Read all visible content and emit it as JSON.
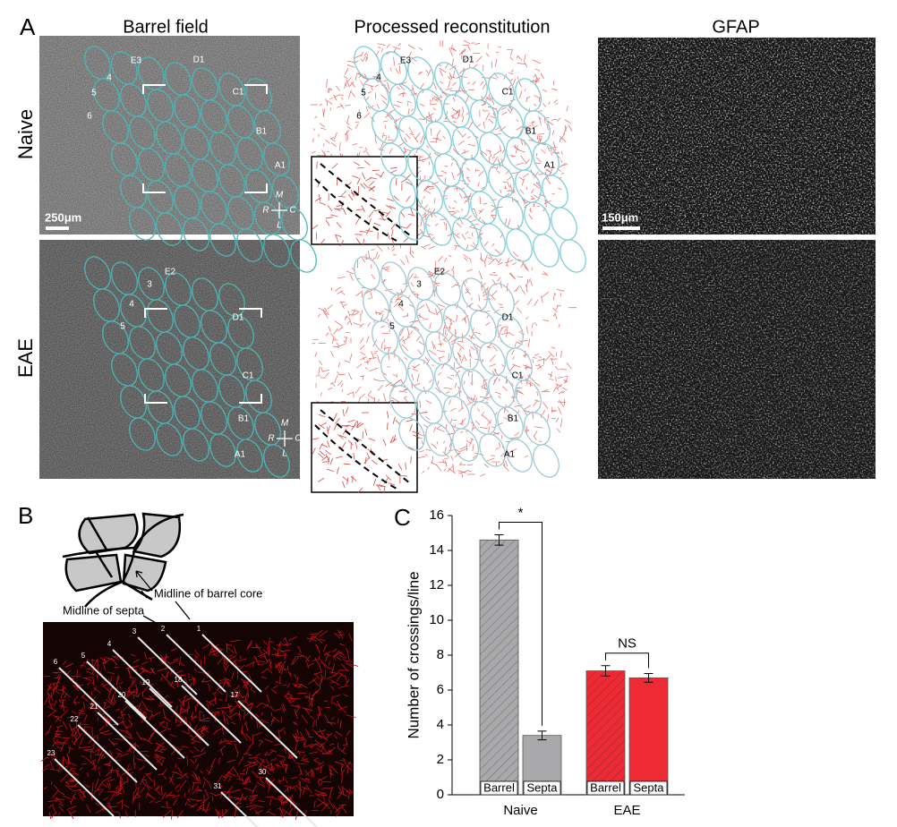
{
  "panel_letters": [
    "A",
    "B",
    "C"
  ],
  "panel_a": {
    "columns": [
      "Barrel field",
      "Processed reconstitution",
      "GFAP"
    ],
    "rows": [
      "Naive",
      "EAE"
    ],
    "scale_bars": [
      "250μm",
      "150μm"
    ],
    "naive_barrels": [
      "E3",
      "D1",
      "4",
      "5",
      "6",
      "C1",
      "B1",
      "A1"
    ],
    "eae_barrels": [
      "E2",
      "3",
      "4",
      "5",
      "D1",
      "C1",
      "B1",
      "A1"
    ],
    "orientation": [
      "M",
      "R",
      "C",
      "L"
    ]
  },
  "panel_b": {
    "annotations": [
      "Midline of barrel core",
      "Midline of septa"
    ],
    "line_numbers": [
      "6",
      "5",
      "4",
      "3",
      "2",
      "1",
      "19",
      "18",
      "17",
      "20",
      "21",
      "22",
      "23",
      "30",
      "31"
    ]
  },
  "chart_data": {
    "type": "bar",
    "y_label": "Number of crossings/line",
    "categories": [
      "Naive",
      "EAE"
    ],
    "series": [
      {
        "name": "Barrel",
        "colors": [
          "#a9a9ab",
          "#ee2a35"
        ],
        "hatched": true,
        "values": [
          14.6,
          7.1
        ],
        "errors": [
          0.3,
          0.3
        ]
      },
      {
        "name": "Septa",
        "colors": [
          "#a9a9ab",
          "#ee2a35"
        ],
        "hatched": false,
        "values": [
          3.4,
          6.7
        ],
        "errors": [
          0.25,
          0.25
        ]
      }
    ],
    "significance": [
      {
        "label": "*",
        "category": 0
      },
      {
        "label": "NS",
        "category": 1
      }
    ],
    "ylim": [
      0,
      16
    ],
    "yticks": [
      0,
      2,
      4,
      6,
      8,
      10,
      12,
      14,
      16
    ]
  }
}
